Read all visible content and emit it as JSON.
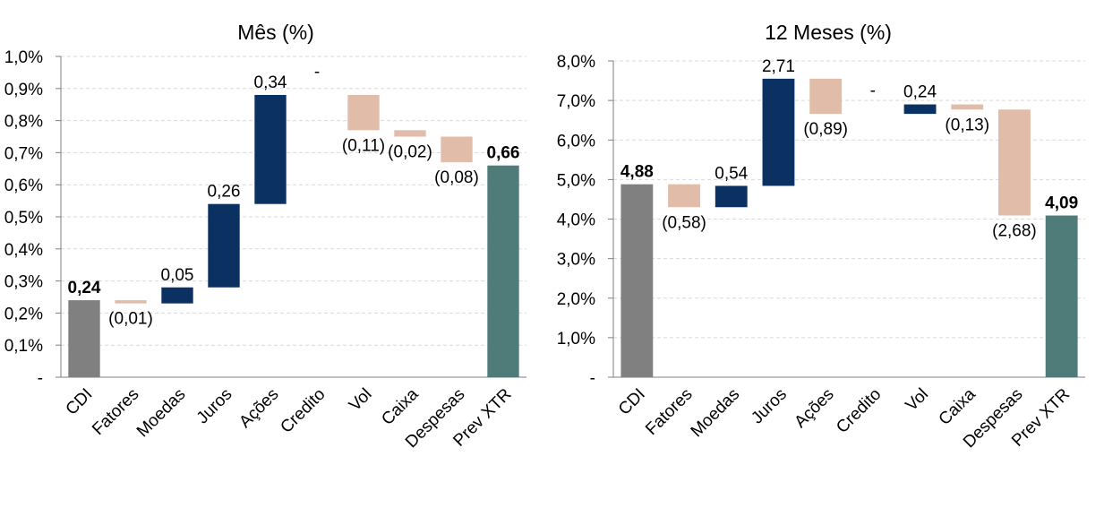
{
  "chart_data": [
    {
      "type": "bar",
      "subtype": "waterfall",
      "title": "Mês (%)",
      "categories": [
        "CDI",
        "Fatores",
        "Moedas",
        "Juros",
        "Ações",
        "Credito",
        "Vol",
        "Caixa",
        "Despesas",
        "Prev XTR"
      ],
      "values": [
        0.24,
        -0.01,
        0.05,
        0.26,
        0.34,
        0,
        -0.11,
        -0.02,
        -0.08,
        0.66
      ],
      "value_labels": [
        "0,24",
        "(0,01)",
        "0,05",
        "0,26",
        "0,34",
        "-",
        "(0,11)",
        "(0,02)",
        "(0,08)",
        "0,66"
      ],
      "bar_kinds": [
        "start",
        "neg",
        "pos",
        "pos",
        "pos",
        "zero",
        "neg",
        "neg",
        "neg",
        "total"
      ],
      "ylim": [
        0,
        1.0
      ],
      "yticks": [
        0,
        0.1,
        0.2,
        0.3,
        0.4,
        0.5,
        0.6,
        0.7,
        0.8,
        0.9,
        1.0
      ],
      "ytick_labels": [
        "-",
        "0,1%",
        "0,2%",
        "0,3%",
        "0,4%",
        "0,5%",
        "0,6%",
        "0,7%",
        "0,8%",
        "0,9%",
        "1,0%"
      ],
      "grid": true,
      "legend": "none"
    },
    {
      "type": "bar",
      "subtype": "waterfall",
      "title": "12 Meses (%)",
      "categories": [
        "CDI",
        "Fatores",
        "Moedas",
        "Juros",
        "Ações",
        "Credito",
        "Vol",
        "Caixa",
        "Despesas",
        "Prev XTR"
      ],
      "values": [
        4.88,
        -0.58,
        0.54,
        2.71,
        -0.89,
        0,
        0.24,
        -0.13,
        -2.68,
        4.09
      ],
      "value_labels": [
        "4,88",
        "(0,58)",
        "0,54",
        "2,71",
        "(0,89)",
        "-",
        "0,24",
        "(0,13)",
        "(2,68)",
        "4,09"
      ],
      "bar_kinds": [
        "start",
        "neg",
        "pos",
        "pos",
        "neg",
        "zero",
        "pos",
        "neg",
        "neg",
        "total"
      ],
      "ylim": [
        0,
        8.0
      ],
      "yticks": [
        0,
        1,
        2,
        3,
        4,
        5,
        6,
        7,
        8
      ],
      "ytick_labels": [
        "-",
        "1,0%",
        "2,0%",
        "3,0%",
        "4,0%",
        "5,0%",
        "6,0%",
        "7,0%",
        "8,0%"
      ],
      "grid": true,
      "legend": "none"
    }
  ],
  "colors": {
    "start": "#808080",
    "positive": "#0b3163",
    "negative": "#e1bca8",
    "total": "#4f7b78",
    "grid": "#d9d9d9",
    "axis": "#7f7f7f",
    "text": "#000000"
  }
}
